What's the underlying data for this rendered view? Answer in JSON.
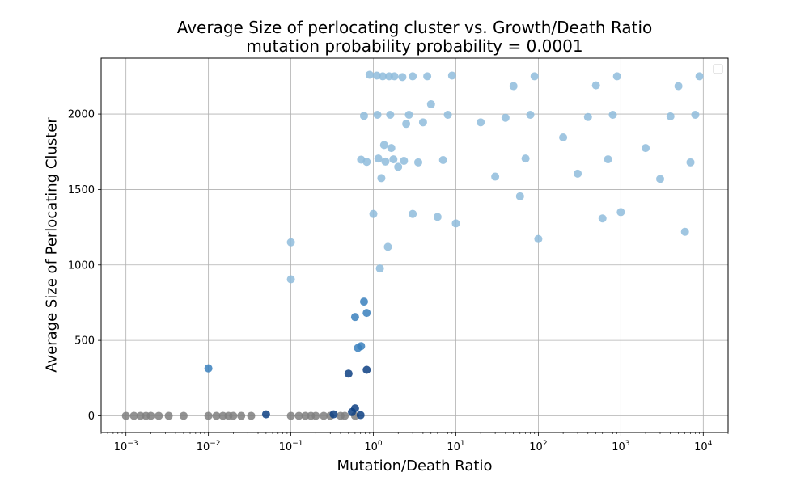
{
  "chart_data": {
    "type": "scatter",
    "title_line1": "Average Size of perlocating cluster vs. Growth/Death Ratio",
    "title_line2": "mutation probability  probability = 0.0001",
    "xlabel": "Mutation/Death Ratio",
    "ylabel": "Average Size of Perlocating Cluster",
    "xscale": "log",
    "xlim": [
      0.0005,
      20000
    ],
    "ylim": [
      -110,
      2370
    ],
    "grid": true,
    "legend": "top-right (empty)",
    "xticks": [
      {
        "exp": "-3",
        "value": 0.001
      },
      {
        "exp": "-2",
        "value": 0.01
      },
      {
        "exp": "-1",
        "value": 0.1
      },
      {
        "exp": "0",
        "value": 1
      },
      {
        "exp": "1",
        "value": 10
      },
      {
        "exp": "2",
        "value": 100
      },
      {
        "exp": "3",
        "value": 1000
      },
      {
        "exp": "4",
        "value": 10000
      }
    ],
    "yticks": [
      "0",
      "500",
      "1000",
      "1500",
      "2000"
    ],
    "ytick_values": [
      0,
      500,
      1000,
      1500,
      2000
    ],
    "colors": {
      "light": "#8fbcdc",
      "mid": "#3a80bd",
      "dark": "#0d4082",
      "gray": "#7f7f7f"
    },
    "series": [
      {
        "color_key": "gray",
        "points": [
          [
            0.001,
            0
          ],
          [
            0.00125,
            0
          ],
          [
            0.0015,
            0
          ],
          [
            0.00175,
            0
          ],
          [
            0.002,
            0
          ],
          [
            0.0025,
            0
          ],
          [
            0.0033,
            0
          ],
          [
            0.005,
            0
          ],
          [
            0.01,
            0
          ],
          [
            0.0125,
            0
          ],
          [
            0.015,
            0
          ],
          [
            0.0175,
            0
          ],
          [
            0.02,
            0
          ],
          [
            0.025,
            0
          ],
          [
            0.033,
            0
          ],
          [
            0.1,
            0
          ],
          [
            0.125,
            0
          ],
          [
            0.15,
            0
          ],
          [
            0.175,
            0
          ],
          [
            0.2,
            0
          ],
          [
            0.25,
            0
          ],
          [
            0.3,
            0
          ],
          [
            0.4,
            0
          ],
          [
            0.45,
            0
          ],
          [
            0.6,
            0
          ]
        ]
      },
      {
        "color_key": "dark",
        "points": [
          [
            0.05,
            10
          ],
          [
            0.33,
            10
          ],
          [
            0.5,
            280
          ],
          [
            0.55,
            25
          ],
          [
            0.6,
            50
          ],
          [
            0.7,
            5
          ],
          [
            0.83,
            305
          ]
        ]
      },
      {
        "color_key": "mid",
        "points": [
          [
            0.01,
            315
          ],
          [
            0.6,
            655
          ],
          [
            0.65,
            450
          ],
          [
            0.71,
            462
          ],
          [
            0.77,
            757
          ],
          [
            0.83,
            682
          ]
        ]
      },
      {
        "color_key": "light",
        "points": [
          [
            0.1,
            1150
          ],
          [
            0.1,
            905
          ],
          [
            0.71,
            1698
          ],
          [
            0.77,
            1988
          ],
          [
            0.83,
            1683
          ],
          [
            0.9,
            2260
          ],
          [
            1.0,
            1338
          ],
          [
            1.1,
            2255
          ],
          [
            1.12,
            1995
          ],
          [
            1.15,
            1705
          ],
          [
            1.2,
            977
          ],
          [
            1.25,
            1575
          ],
          [
            1.3,
            2250
          ],
          [
            1.35,
            1795
          ],
          [
            1.4,
            1685
          ],
          [
            1.5,
            1120
          ],
          [
            1.55,
            2250
          ],
          [
            1.6,
            1995
          ],
          [
            1.65,
            1775
          ],
          [
            1.75,
            1700
          ],
          [
            1.8,
            2250
          ],
          [
            2.0,
            1650
          ],
          [
            2.25,
            2245
          ],
          [
            2.35,
            1690
          ],
          [
            2.5,
            1935
          ],
          [
            2.7,
            1995
          ],
          [
            3.0,
            2250
          ],
          [
            3.0,
            1338
          ],
          [
            3.5,
            1680
          ],
          [
            4.0,
            1945
          ],
          [
            4.5,
            2250
          ],
          [
            5.0,
            2065
          ],
          [
            6.0,
            1318
          ],
          [
            7.0,
            1695
          ],
          [
            8.0,
            1995
          ],
          [
            9.0,
            2255
          ],
          [
            10,
            1275
          ],
          [
            20,
            1945
          ],
          [
            30,
            1585
          ],
          [
            40,
            1975
          ],
          [
            50,
            2185
          ],
          [
            60,
            1455
          ],
          [
            70,
            1705
          ],
          [
            80,
            1995
          ],
          [
            90,
            2250
          ],
          [
            100,
            1172
          ],
          [
            200,
            1845
          ],
          [
            300,
            1605
          ],
          [
            400,
            1980
          ],
          [
            500,
            2190
          ],
          [
            600,
            1308
          ],
          [
            700,
            1700
          ],
          [
            800,
            1995
          ],
          [
            900,
            2250
          ],
          [
            1000,
            1350
          ],
          [
            2000,
            1775
          ],
          [
            3000,
            1570
          ],
          [
            4000,
            1985
          ],
          [
            5000,
            2185
          ],
          [
            6000,
            1220
          ],
          [
            7000,
            1680
          ],
          [
            8000,
            1995
          ],
          [
            9000,
            2250
          ]
        ]
      }
    ]
  }
}
